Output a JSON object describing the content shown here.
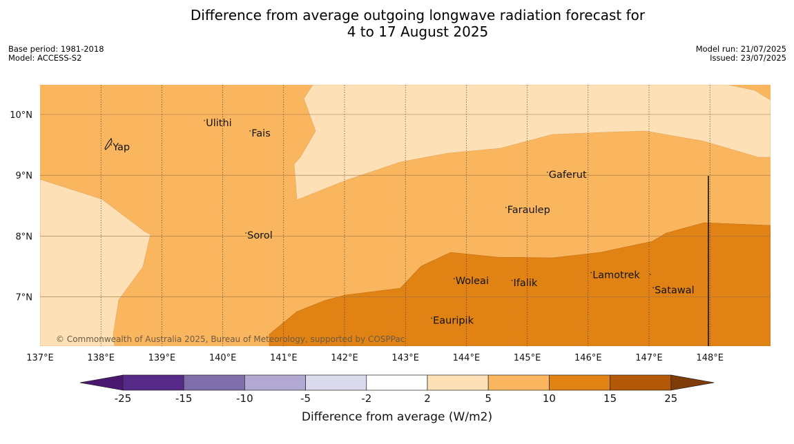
{
  "title": {
    "line1": "Difference from average outgoing longwave radiation forecast for",
    "line2": "4 to 17 August 2025"
  },
  "meta_left": {
    "base_period": "Base period: 1981-2018",
    "model": "Model: ACCESS-S2"
  },
  "meta_right": {
    "model_run": "Model run: 21/07/2025",
    "issued": "Issued: 23/07/2025"
  },
  "map": {
    "lon_range": [
      137,
      149
    ],
    "lat_range": [
      6.2,
      10.5
    ],
    "lon_ticks": [
      "137°E",
      "138°E",
      "139°E",
      "140°E",
      "141°E",
      "142°E",
      "143°E",
      "144°E",
      "145°E",
      "146°E",
      "147°E",
      "148°E"
    ],
    "lat_ticks": [
      "10°N",
      "9°N",
      "8°N",
      "7°N"
    ],
    "places": [
      {
        "name": "Yap",
        "lon": 138.17,
        "lat": 9.5
      },
      {
        "name": "Ulithi",
        "lon": 139.7,
        "lat": 9.9
      },
      {
        "name": "Fais",
        "lon": 140.45,
        "lat": 9.73
      },
      {
        "name": "Gaferut",
        "lon": 145.33,
        "lat": 9.05
      },
      {
        "name": "Faraulep",
        "lon": 144.65,
        "lat": 8.47
      },
      {
        "name": "Sorol",
        "lon": 140.38,
        "lat": 8.05
      },
      {
        "name": "Lamotrek",
        "lon": 146.05,
        "lat": 7.4
      },
      {
        "name": "Woleai",
        "lon": 143.8,
        "lat": 7.3
      },
      {
        "name": "Ifalik",
        "lon": 144.75,
        "lat": 7.27
      },
      {
        "name": "Satawal",
        "lon": 147.07,
        "lat": 7.15
      },
      {
        "name": "Eauripik",
        "lon": 143.43,
        "lat": 6.65
      }
    ],
    "copyright": "© Commonwealth of Australia 2025, Bureau of Meteorology, supported by COSPPac"
  },
  "colorbar": {
    "title": "Difference from average (W/m2)",
    "labels": [
      "-25",
      "-15",
      "-10",
      "-5",
      "-2",
      "2",
      "5",
      "10",
      "15",
      "25"
    ],
    "colors": [
      "#4b1871",
      "#582a87",
      "#7e6eaa",
      "#b2a9d2",
      "#dadaec",
      "#ffffff",
      "#fde0b5",
      "#fab65e",
      "#e08214",
      "#b35806",
      "#7f3b08"
    ]
  }
}
